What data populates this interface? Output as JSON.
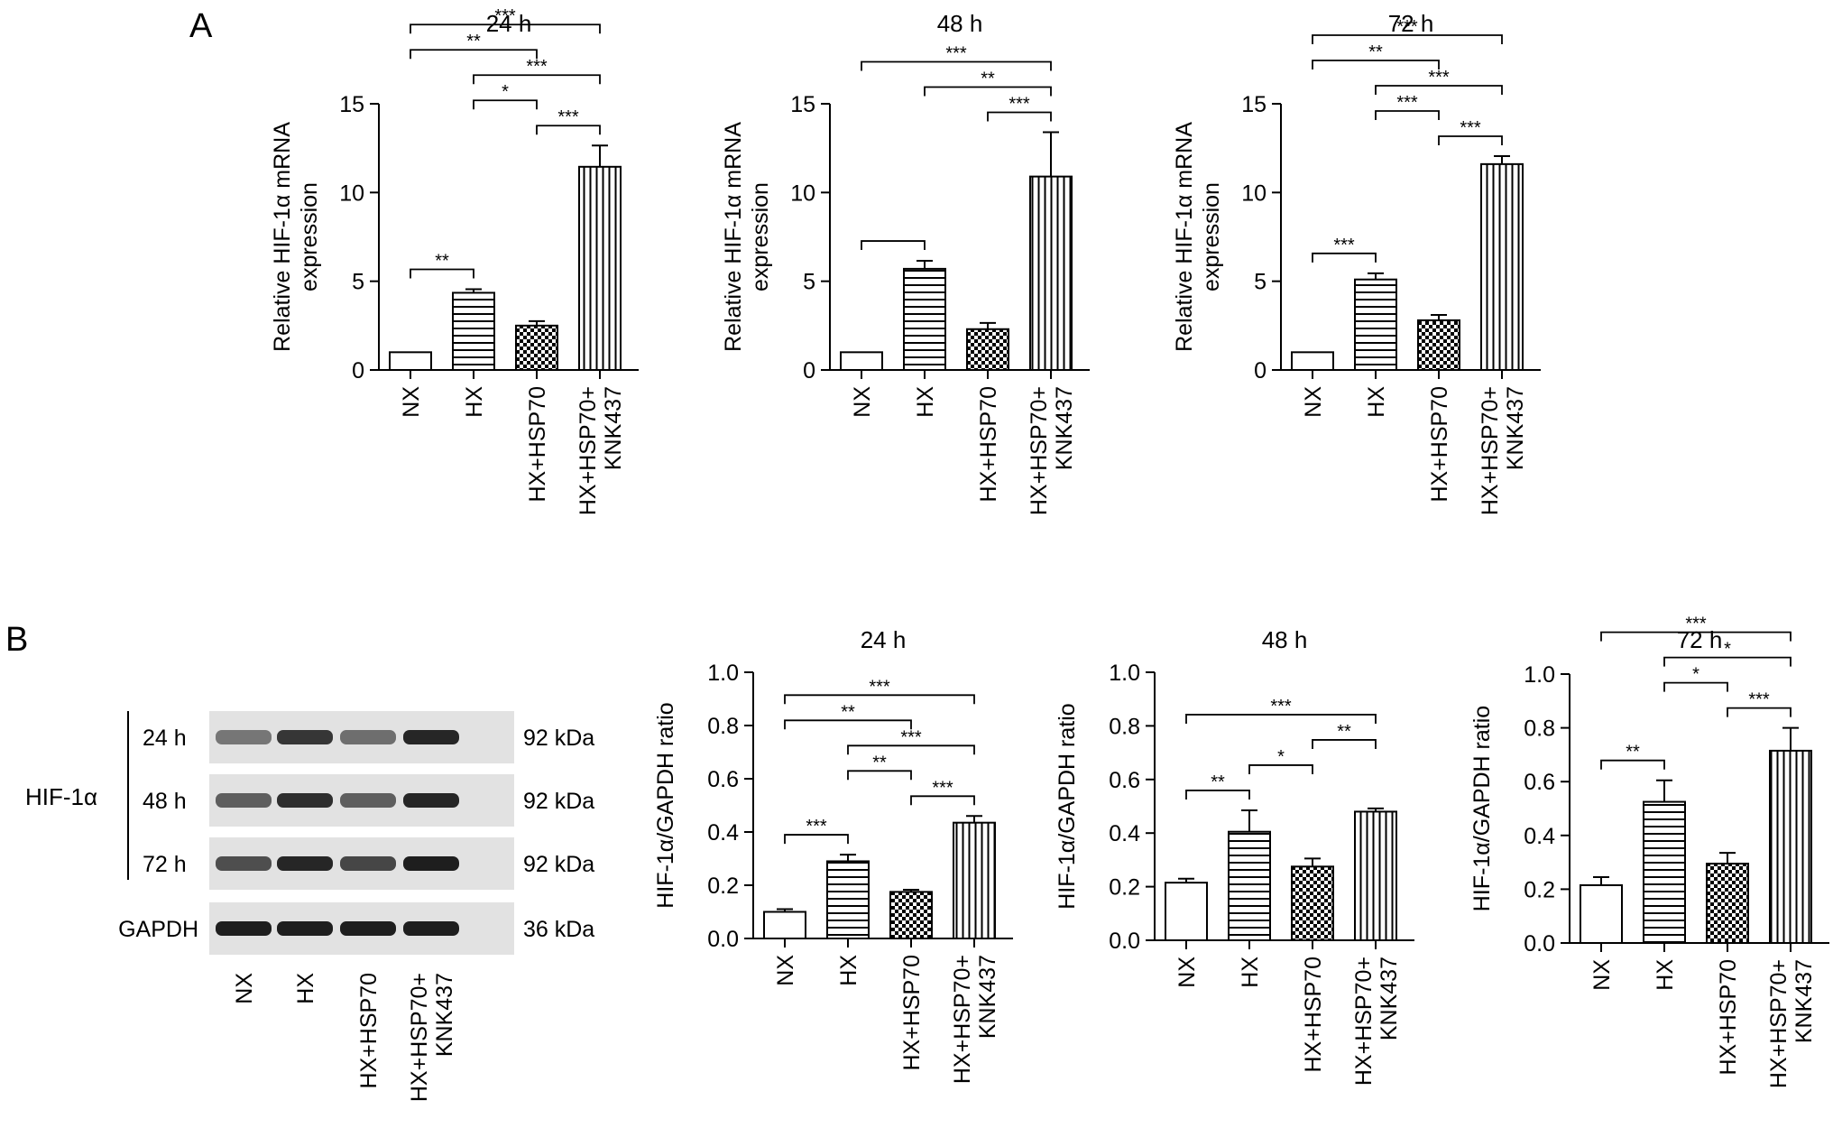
{
  "panels": {
    "a": "A",
    "b": "B"
  },
  "chart_data": [
    {
      "type": "bar",
      "panel": "A",
      "title": "24 h",
      "ylabel": "Relative HIF-1α mRNA expression",
      "ylabel_lines": [
        "Relative HIF-1α mRNA",
        "expression"
      ],
      "categories": [
        [
          "NX"
        ],
        [
          "HX"
        ],
        [
          "HX+HSP70"
        ],
        [
          "HX+HSP70+",
          "KNK437"
        ]
      ],
      "values": [
        1.0,
        4.35,
        2.5,
        11.45
      ],
      "errors": [
        0,
        0.2,
        0.25,
        1.2
      ],
      "ylim": [
        0,
        15
      ],
      "yticks": [
        "0",
        "5",
        "10",
        "15"
      ],
      "annotations": [
        {
          "from": 0,
          "to": 3,
          "label": "***"
        },
        {
          "from": 1,
          "to": 3,
          "label": "***"
        },
        {
          "from": 2,
          "to": 3,
          "label": "***"
        },
        {
          "from": 0,
          "to": 2,
          "label": "**"
        },
        {
          "from": 0,
          "to": 1,
          "label": "**"
        },
        {
          "from": 1,
          "to": 2,
          "label": "*"
        }
      ]
    },
    {
      "type": "bar",
      "panel": "A",
      "title": "48 h",
      "ylabel": "Relative HIF-1α mRNA expression",
      "ylabel_lines": [
        "Relative HIF-1α mRNA",
        "expression"
      ],
      "categories": [
        [
          "NX"
        ],
        [
          "HX"
        ],
        [
          "HX+HSP70"
        ],
        [
          "HX+HSP70+",
          "KNK437"
        ]
      ],
      "values": [
        1.0,
        5.7,
        2.3,
        10.9
      ],
      "errors": [
        0,
        0.45,
        0.35,
        2.5
      ],
      "ylim": [
        0,
        15
      ],
      "yticks": [
        "0",
        "5",
        "10",
        "15"
      ],
      "annotations": [
        {
          "from": 0,
          "to": 3,
          "label": "***"
        },
        {
          "from": 1,
          "to": 3,
          "label": "**"
        },
        {
          "from": 2,
          "to": 3,
          "label": "***"
        },
        {
          "from": 0,
          "to": 1,
          "label": ""
        }
      ]
    },
    {
      "type": "bar",
      "panel": "A",
      "title": "72 h",
      "ylabel": "Relative HIF-1α mRNA expression",
      "ylabel_lines": [
        "Relative HIF-1α mRNA",
        "expression"
      ],
      "categories": [
        [
          "NX"
        ],
        [
          "HX"
        ],
        [
          "HX+HSP70"
        ],
        [
          "HX+HSP70+",
          "KNK437"
        ]
      ],
      "values": [
        1.0,
        5.1,
        2.8,
        11.6
      ],
      "errors": [
        0,
        0.35,
        0.3,
        0.45
      ],
      "ylim": [
        0,
        15
      ],
      "yticks": [
        "0",
        "5",
        "10",
        "15"
      ],
      "annotations": [
        {
          "from": 0,
          "to": 3,
          "label": "***"
        },
        {
          "from": 1,
          "to": 3,
          "label": "***"
        },
        {
          "from": 2,
          "to": 3,
          "label": "***"
        },
        {
          "from": 0,
          "to": 2,
          "label": "**"
        },
        {
          "from": 0,
          "to": 1,
          "label": "***"
        },
        {
          "from": 1,
          "to": 2,
          "label": "***"
        }
      ]
    },
    {
      "type": "bar",
      "panel": "B",
      "title": "24 h",
      "ylabel": "HIF-1α/GAPDH ratio",
      "ylabel_lines": [
        "HIF-1α/GAPDH ratio"
      ],
      "categories": [
        [
          "NX"
        ],
        [
          "HX"
        ],
        [
          "HX+HSP70"
        ],
        [
          "HX+HSP70+",
          "KNK437"
        ]
      ],
      "values": [
        0.1,
        0.29,
        0.175,
        0.435
      ],
      "errors": [
        0.01,
        0.025,
        0.008,
        0.025
      ],
      "ylim": [
        0,
        1.0
      ],
      "yticks": [
        "0.0",
        "0.2",
        "0.4",
        "0.6",
        "0.8",
        "1.0"
      ],
      "annotations": [
        {
          "from": 0,
          "to": 3,
          "label": "***"
        },
        {
          "from": 1,
          "to": 3,
          "label": "***"
        },
        {
          "from": 2,
          "to": 3,
          "label": "***"
        },
        {
          "from": 0,
          "to": 2,
          "label": "**"
        },
        {
          "from": 0,
          "to": 1,
          "label": "***"
        },
        {
          "from": 1,
          "to": 2,
          "label": "**"
        }
      ]
    },
    {
      "type": "bar",
      "panel": "B",
      "title": "48 h",
      "ylabel": "HIF-1α/GAPDH ratio",
      "ylabel_lines": [
        "HIF-1α/GAPDH ratio"
      ],
      "categories": [
        [
          "NX"
        ],
        [
          "HX"
        ],
        [
          "HX+HSP70"
        ],
        [
          "HX+HSP70+",
          "KNK437"
        ]
      ],
      "values": [
        0.215,
        0.405,
        0.275,
        0.48
      ],
      "errors": [
        0.015,
        0.08,
        0.03,
        0.012
      ],
      "ylim": [
        0,
        1.0
      ],
      "yticks": [
        "0.0",
        "0.2",
        "0.4",
        "0.6",
        "0.8",
        "1.0"
      ],
      "annotations": [
        {
          "from": 0,
          "to": 3,
          "label": "***"
        },
        {
          "from": 0,
          "to": 1,
          "label": "**"
        },
        {
          "from": 1,
          "to": 2,
          "label": "*"
        },
        {
          "from": 2,
          "to": 3,
          "label": "**"
        }
      ]
    },
    {
      "type": "bar",
      "panel": "B",
      "title": "72 h",
      "ylabel": "HIF-1α/GAPDH ratio",
      "ylabel_lines": [
        "HIF-1α/GAPDH ratio"
      ],
      "categories": [
        [
          "NX"
        ],
        [
          "HX"
        ],
        [
          "HX+HSP70"
        ],
        [
          "HX+HSP70+",
          "KNK437"
        ]
      ],
      "values": [
        0.215,
        0.525,
        0.295,
        0.715
      ],
      "errors": [
        0.03,
        0.08,
        0.04,
        0.085
      ],
      "ylim": [
        0,
        1.0
      ],
      "yticks": [
        "0.0",
        "0.2",
        "0.4",
        "0.6",
        "0.8",
        "1.0"
      ],
      "annotations": [
        {
          "from": 0,
          "to": 3,
          "label": "***"
        },
        {
          "from": 1,
          "to": 3,
          "label": "*"
        },
        {
          "from": 2,
          "to": 3,
          "label": "***"
        },
        {
          "from": 0,
          "to": 1,
          "label": "**"
        },
        {
          "from": 1,
          "to": 2,
          "label": "*"
        }
      ]
    }
  ],
  "western_blot": {
    "group_label": "HIF-1α",
    "rows": [
      {
        "time": "24 h",
        "kda": "92 kDa",
        "intensities": [
          0.45,
          0.85,
          0.5,
          0.95
        ]
      },
      {
        "time": "48 h",
        "kda": "92 kDa",
        "intensities": [
          0.6,
          0.9,
          0.6,
          0.95
        ]
      },
      {
        "time": "72 h",
        "kda": "92 kDa",
        "intensities": [
          0.7,
          0.95,
          0.75,
          1.0
        ]
      },
      {
        "time": "GAPDH",
        "kda": "36 kDa",
        "intensities": [
          1.0,
          1.0,
          1.0,
          1.0
        ]
      }
    ],
    "lanes": [
      [
        "NX"
      ],
      [
        "HX"
      ],
      [
        "HX+HSP70"
      ],
      [
        "HX+HSP70+",
        "KNK437"
      ]
    ]
  }
}
